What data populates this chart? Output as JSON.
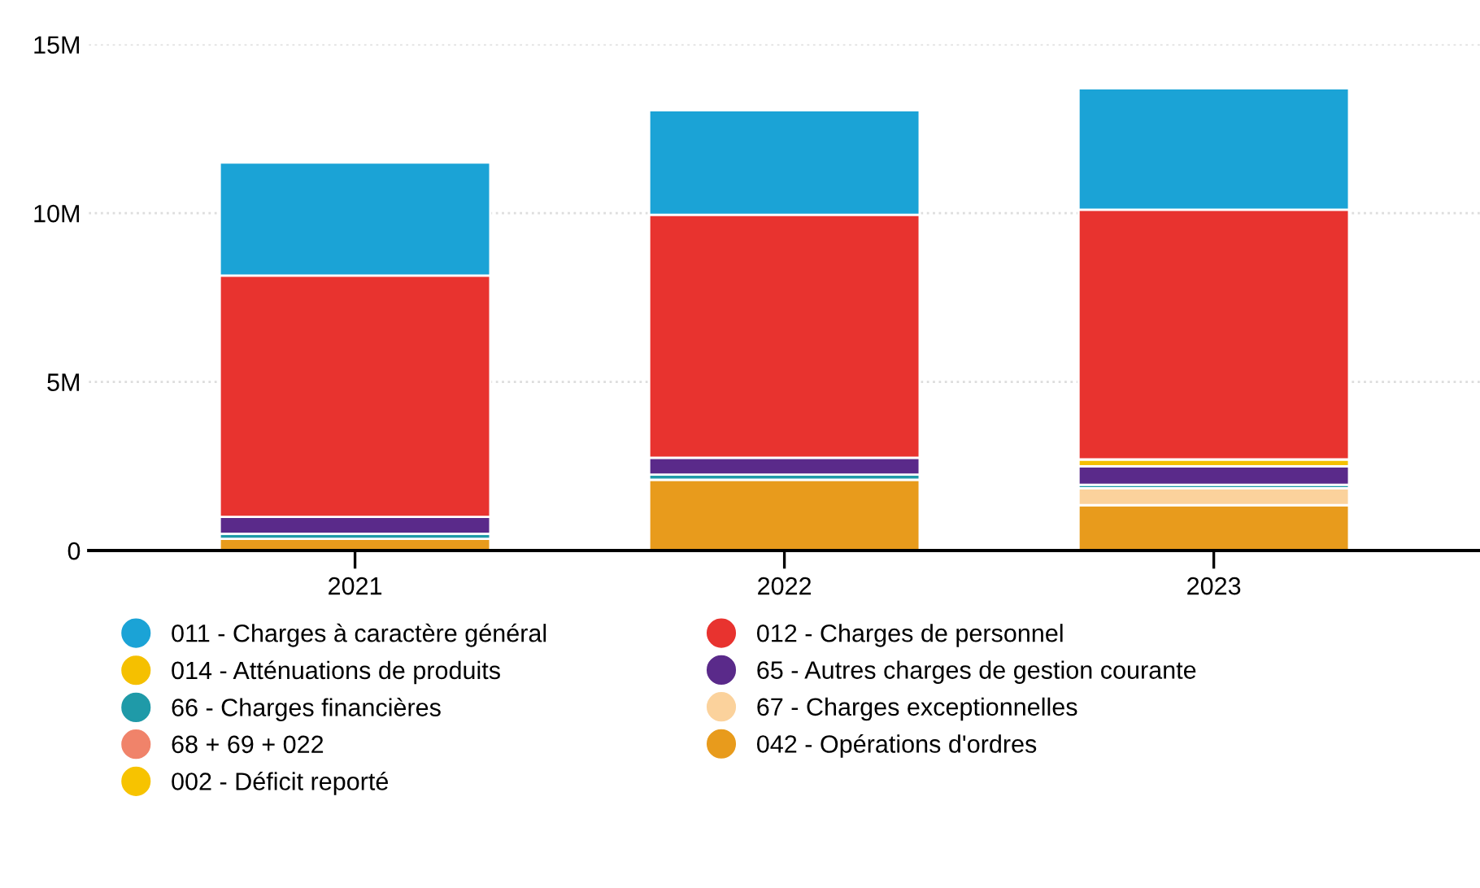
{
  "chart_data": {
    "type": "bar",
    "stacked": true,
    "categories": [
      "2021",
      "2022",
      "2023"
    ],
    "series": [
      {
        "name": "002 - Déficit reporté",
        "color": "#f7c300",
        "values": [
          0,
          0,
          0
        ]
      },
      {
        "name": "042 - Opérations d'ordres",
        "color": "#e89b1c",
        "values": [
          0.35,
          2.1,
          1.35
        ]
      },
      {
        "name": "68 + 69 + 022",
        "color": "#f0836a",
        "values": [
          0,
          0,
          0
        ]
      },
      {
        "name": "67 - Charges exceptionnelles",
        "color": "#fbd29c",
        "values": [
          0,
          0,
          0.5
        ]
      },
      {
        "name": "66 - Charges financières",
        "color": "#1f9aa8",
        "values": [
          0.15,
          0.15,
          0.1
        ]
      },
      {
        "name": "65 - Autres charges de gestion courante",
        "color": "#5a2a8a",
        "values": [
          0.5,
          0.5,
          0.55
        ]
      },
      {
        "name": "014 - Atténuations de produits",
        "color": "#f5c000",
        "values": [
          0,
          0,
          0.2
        ]
      },
      {
        "name": "012 - Charges de personnel",
        "color": "#e8332f",
        "values": [
          7.15,
          7.2,
          7.4
        ]
      },
      {
        "name": "011 - Charges à caractère général",
        "color": "#1ba3d6",
        "values": [
          3.35,
          3.1,
          3.6
        ]
      }
    ],
    "ylim": [
      0,
      15
    ],
    "yticks": [
      0,
      {
        "value": 5,
        "label": "5M"
      },
      {
        "value": 10,
        "label": "10M"
      },
      {
        "value": 15,
        "label": "15M"
      }
    ],
    "grid": "y",
    "legend": "bottom"
  }
}
